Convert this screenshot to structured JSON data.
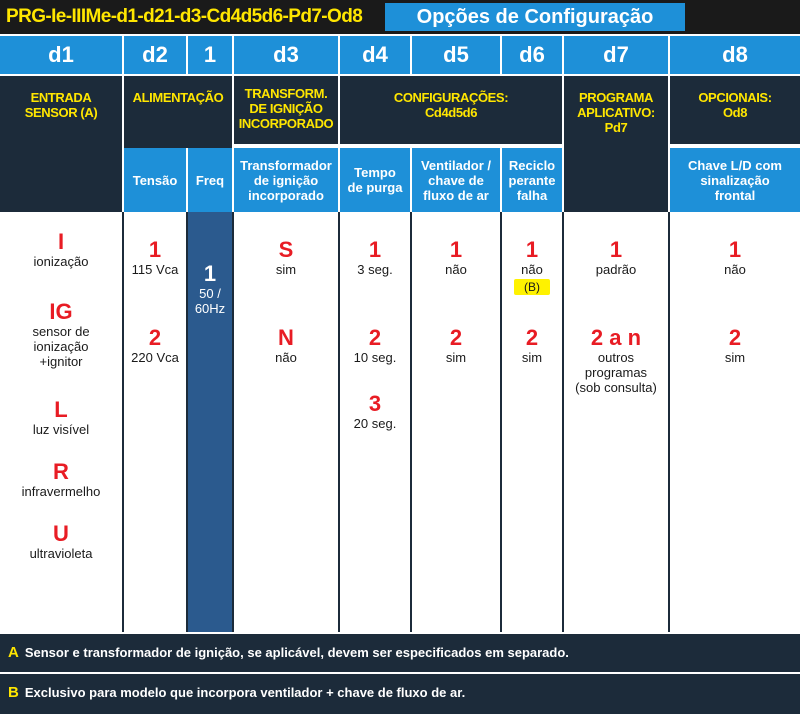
{
  "title": {
    "code": "PRG-Ie-IIIMe-d1-d21-d3-Cd4d5d6-Pd7-Od8",
    "main": "Opções de Configuração"
  },
  "columns": {
    "d1": "d1",
    "d2": "d2",
    "f1": "1",
    "d3": "d3",
    "d4": "d4",
    "d5": "d5",
    "d6": "d6",
    "d7": "d7",
    "d8": "d8"
  },
  "groups": {
    "entrada": [
      "ENTRADA",
      "SENSOR (A)"
    ],
    "alimentacao": "ALIMENTAÇÃO",
    "transform": [
      "TRANSFORM.",
      "DE IGNIÇÃO",
      "INCORPORADO"
    ],
    "config": [
      "CONFIGURAÇÕES:",
      "Cd4d5d6"
    ],
    "programa": [
      "PROGRAMA",
      "APLICATIVO:",
      "Pd7"
    ],
    "opcionais": [
      "OPCIONAIS:",
      "Od8"
    ]
  },
  "subheaders": {
    "tensao": "Tensão",
    "freq": "Freq",
    "transformador": [
      "Transformador",
      "de ignição",
      "incorporado"
    ],
    "tempo": [
      "Tempo",
      "de purga"
    ],
    "ventilador": [
      "Ventilador /",
      "chave de",
      "fluxo de ar"
    ],
    "reciclo": [
      "Reciclo",
      "perante",
      "falha"
    ],
    "chave": [
      "Chave L/D com",
      "sinalização",
      "frontal"
    ]
  },
  "d1_options": [
    {
      "code": "I",
      "label": [
        "ionização"
      ]
    },
    {
      "code": "IG",
      "label": [
        "sensor de",
        "ionização",
        "+ignitor"
      ]
    },
    {
      "code": "L",
      "label": [
        "luz visível"
      ]
    },
    {
      "code": "R",
      "label": [
        "infravermelho"
      ]
    },
    {
      "code": "U",
      "label": [
        "ultravioleta"
      ]
    }
  ],
  "d2_options": [
    {
      "code": "1",
      "label": "115 Vca"
    },
    {
      "code": "2",
      "label": "220 Vca"
    }
  ],
  "freq_option": {
    "code": "1",
    "label": [
      "50 /",
      "60Hz"
    ]
  },
  "d3_options": [
    {
      "code": "S",
      "label": "sim"
    },
    {
      "code": "N",
      "label": "não"
    }
  ],
  "d4_options": [
    {
      "code": "1",
      "label": "3 seg."
    },
    {
      "code": "2",
      "label": "10 seg."
    },
    {
      "code": "3",
      "label": "20 seg."
    }
  ],
  "d5_options": [
    {
      "code": "1",
      "label": "não"
    },
    {
      "code": "2",
      "label": "sim"
    }
  ],
  "d6_options": [
    {
      "code": "1",
      "label": "não",
      "note": "(B)"
    },
    {
      "code": "2",
      "label": "sim"
    }
  ],
  "d7_options": [
    {
      "code": "1",
      "label": [
        "padrão"
      ]
    },
    {
      "code": "2 a n",
      "label": [
        "outros",
        "programas",
        "(sob consulta)"
      ]
    }
  ],
  "d8_options": [
    {
      "code": "1",
      "label": "não"
    },
    {
      "code": "2",
      "label": "sim"
    }
  ],
  "footnotes": [
    {
      "key": "A",
      "text": "Sensor e transformador de ignição, se aplicável, devem ser especificados em separado."
    },
    {
      "key": "B",
      "text": "Exclusivo para modelo que incorpora ventilador + chave de fluxo de ar."
    }
  ]
}
